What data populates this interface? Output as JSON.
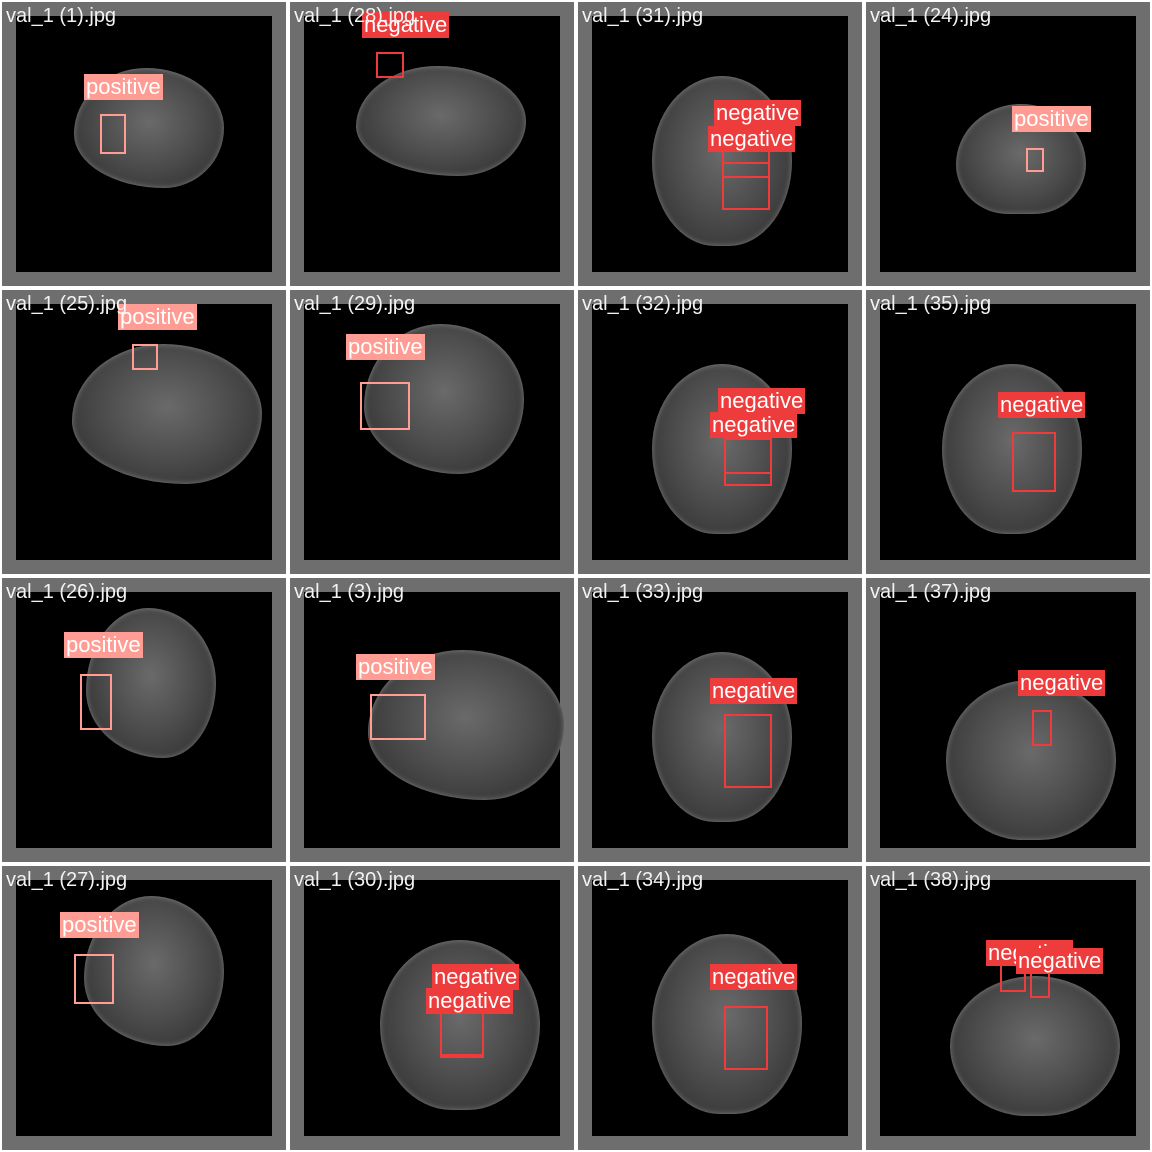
{
  "colors": {
    "positive": "#ff9d95",
    "negative": "#ee3b3b",
    "frame": "#6e6e6e",
    "background": "#000000"
  },
  "tiles": [
    {
      "filename": "val_1 (1).jpg",
      "view": "sagittal",
      "detections": [
        {
          "label": "positive"
        }
      ]
    },
    {
      "filename": "val_1 (28).jpg",
      "view": "sagittal",
      "detections": [
        {
          "label": "negative"
        }
      ]
    },
    {
      "filename": "val_1 (31).jpg",
      "view": "axial",
      "detections": [
        {
          "label": "negative"
        },
        {
          "label": "negative"
        }
      ]
    },
    {
      "filename": "val_1 (24).jpg",
      "view": "coronal",
      "detections": [
        {
          "label": "positive"
        }
      ]
    },
    {
      "filename": "val_1 (25).jpg",
      "view": "sagittal",
      "detections": [
        {
          "label": "positive"
        }
      ]
    },
    {
      "filename": "val_1 (29).jpg",
      "view": "sagittal",
      "detections": [
        {
          "label": "positive"
        }
      ]
    },
    {
      "filename": "val_1 (32).jpg",
      "view": "axial",
      "detections": [
        {
          "label": "negative"
        },
        {
          "label": "negative"
        }
      ]
    },
    {
      "filename": "val_1 (35).jpg",
      "view": "axial",
      "detections": [
        {
          "label": "negative"
        }
      ]
    },
    {
      "filename": "val_1 (26).jpg",
      "view": "sagittal",
      "detections": [
        {
          "label": "positive"
        }
      ]
    },
    {
      "filename": "val_1 (3).jpg",
      "view": "sagittal",
      "detections": [
        {
          "label": "positive"
        }
      ]
    },
    {
      "filename": "val_1 (33).jpg",
      "view": "axial",
      "detections": [
        {
          "label": "negative"
        }
      ]
    },
    {
      "filename": "val_1 (37).jpg",
      "view": "axial",
      "detections": [
        {
          "label": "negative"
        }
      ]
    },
    {
      "filename": "val_1 (27).jpg",
      "view": "sagittal",
      "detections": [
        {
          "label": "positive"
        }
      ]
    },
    {
      "filename": "val_1 (30).jpg",
      "view": "axial",
      "detections": [
        {
          "label": "negative"
        },
        {
          "label": "negative"
        }
      ]
    },
    {
      "filename": "val_1 (34).jpg",
      "view": "axial",
      "detections": [
        {
          "label": "negative"
        }
      ]
    },
    {
      "filename": "val_1 (38).jpg",
      "view": "axial",
      "detections": [
        {
          "label": "negative"
        },
        {
          "label": "negative"
        }
      ]
    }
  ]
}
